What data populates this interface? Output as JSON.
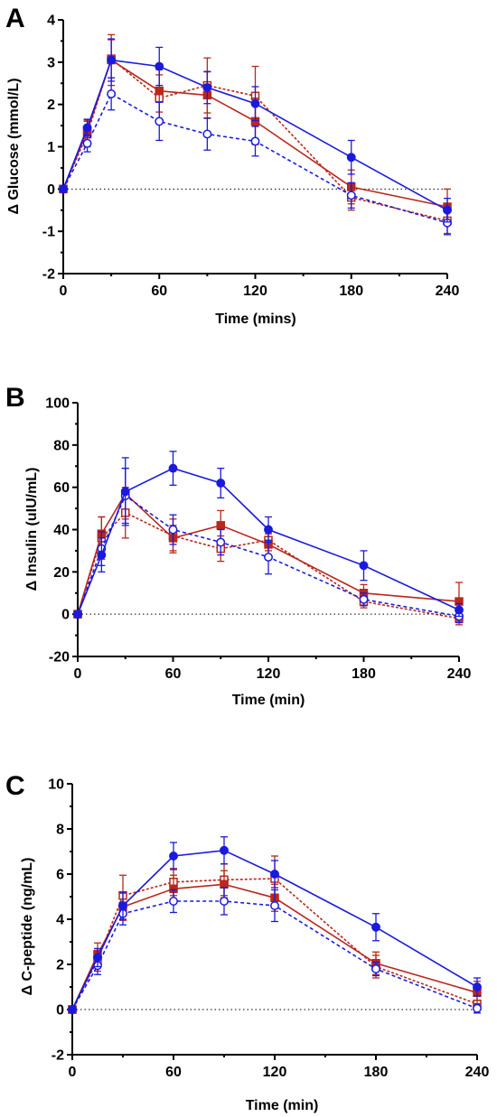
{
  "colors": {
    "blue": "#1a1adf",
    "red": "#b8281c"
  },
  "chart_data": [
    {
      "type": "line",
      "panel_label": "A",
      "xlabel": "Time (mins)",
      "ylabel": "Δ Glucose (mmol/L)",
      "xlim": [
        0,
        240
      ],
      "ylim": [
        -2,
        4
      ],
      "xticks": [
        0,
        60,
        120,
        180,
        240
      ],
      "yticks": [
        -2,
        -1,
        0,
        1,
        2,
        3,
        4
      ],
      "zero_reference_line": true,
      "series": [
        {
          "style": "blue-solid-filled-circle",
          "x": [
            0,
            15,
            30,
            60,
            90,
            120,
            180,
            240
          ],
          "y": [
            0,
            1.45,
            3.05,
            2.9,
            2.4,
            2.02,
            0.75,
            -0.5
          ],
          "err": [
            0,
            0.2,
            0.5,
            0.45,
            0.38,
            0.4,
            0.4,
            0.28
          ]
        },
        {
          "style": "blue-dashed-open-circle",
          "x": [
            0,
            15,
            30,
            60,
            90,
            120,
            180,
            240
          ],
          "y": [
            0,
            1.08,
            2.25,
            1.6,
            1.3,
            1.13,
            -0.15,
            -0.8
          ],
          "err": [
            0,
            0.2,
            0.38,
            0.45,
            0.38,
            0.35,
            0.3,
            0.28
          ]
        },
        {
          "style": "red-solid-filled-square",
          "x": [
            0,
            15,
            30,
            60,
            90,
            120,
            180,
            240
          ],
          "y": [
            0,
            1.38,
            3.05,
            2.32,
            2.22,
            1.6,
            0.05,
            -0.42
          ],
          "err": [
            0,
            0.25,
            0.6,
            0.5,
            0.55,
            0.55,
            0.4,
            0.42
          ]
        },
        {
          "style": "red-dashed-open-square",
          "x": [
            0,
            15,
            30,
            60,
            90,
            120,
            180,
            240
          ],
          "y": [
            0,
            1.3,
            3.08,
            2.15,
            2.45,
            2.2,
            -0.2,
            -0.75
          ],
          "err": [
            0,
            0.3,
            0.45,
            0.55,
            0.65,
            0.7,
            0.3,
            0.3
          ]
        }
      ]
    },
    {
      "type": "line",
      "panel_label": "B",
      "xlabel": "Time (min)",
      "ylabel": "Δ Insulin (uIU/mL)",
      "xlim": [
        0,
        240
      ],
      "ylim": [
        -20,
        100
      ],
      "xticks": [
        0,
        60,
        120,
        180,
        240
      ],
      "yticks": [
        -20,
        0,
        20,
        40,
        60,
        80,
        100
      ],
      "zero_reference_line": true,
      "series": [
        {
          "style": "blue-solid-filled-circle",
          "x": [
            0,
            15,
            30,
            60,
            90,
            120,
            180,
            240
          ],
          "y": [
            0,
            28,
            58,
            69,
            62,
            40,
            23,
            2
          ],
          "err": [
            0,
            8,
            16,
            8,
            7,
            6,
            7,
            3
          ]
        },
        {
          "style": "blue-dashed-open-circle",
          "x": [
            0,
            15,
            30,
            60,
            90,
            120,
            180,
            240
          ],
          "y": [
            0,
            31,
            56,
            40,
            34,
            27,
            7,
            -1
          ],
          "err": [
            0,
            8,
            13,
            7,
            6,
            8,
            3,
            3
          ]
        },
        {
          "style": "red-solid-filled-square",
          "x": [
            0,
            15,
            30,
            60,
            90,
            120,
            180,
            240
          ],
          "y": [
            0,
            38,
            57,
            36,
            42,
            33,
            10,
            6
          ],
          "err": [
            0,
            8,
            12,
            6,
            7,
            5,
            4,
            9
          ]
        },
        {
          "style": "red-dashed-open-square",
          "x": [
            0,
            15,
            30,
            60,
            90,
            120,
            180,
            240
          ],
          "y": [
            0,
            36,
            48,
            37,
            31,
            35,
            6,
            -2
          ],
          "err": [
            0,
            10,
            12,
            8,
            6,
            5,
            3,
            3
          ]
        }
      ]
    },
    {
      "type": "line",
      "panel_label": "C",
      "xlabel": "Time (min)",
      "ylabel": "Δ C-peptide (ng/mL)",
      "xlim": [
        0,
        240
      ],
      "ylim": [
        -2,
        10
      ],
      "xticks": [
        0,
        60,
        120,
        180,
        240
      ],
      "yticks": [
        -2,
        0,
        2,
        4,
        6,
        8,
        10
      ],
      "zero_reference_line": true,
      "series": [
        {
          "style": "blue-solid-filled-circle",
          "x": [
            0,
            15,
            30,
            60,
            90,
            120,
            180,
            240
          ],
          "y": [
            0,
            2.3,
            4.6,
            6.8,
            7.05,
            6.0,
            3.65,
            1.0
          ],
          "err": [
            0,
            0.4,
            0.6,
            0.6,
            0.6,
            0.6,
            0.6,
            0.4
          ]
        },
        {
          "style": "blue-dashed-open-circle",
          "x": [
            0,
            15,
            30,
            60,
            90,
            120,
            180,
            240
          ],
          "y": [
            0,
            1.95,
            4.25,
            4.8,
            4.8,
            4.6,
            1.8,
            0.05
          ],
          "err": [
            0,
            0.4,
            0.5,
            0.5,
            0.6,
            0.7,
            0.3,
            0.2
          ]
        },
        {
          "style": "red-solid-filled-square",
          "x": [
            0,
            15,
            30,
            60,
            90,
            120,
            180,
            240
          ],
          "y": [
            0,
            2.45,
            4.55,
            5.35,
            5.55,
            4.95,
            2.05,
            0.75
          ],
          "err": [
            0,
            0.5,
            0.6,
            0.6,
            0.6,
            0.6,
            0.5,
            0.5
          ]
        },
        {
          "style": "red-dashed-open-square",
          "x": [
            0,
            15,
            30,
            60,
            90,
            120,
            180,
            240
          ],
          "y": [
            0,
            2.2,
            5.05,
            5.65,
            5.75,
            5.8,
            1.9,
            0.25
          ],
          "err": [
            0,
            0.5,
            0.9,
            0.6,
            0.7,
            1.0,
            0.5,
            0.4
          ]
        }
      ]
    }
  ]
}
